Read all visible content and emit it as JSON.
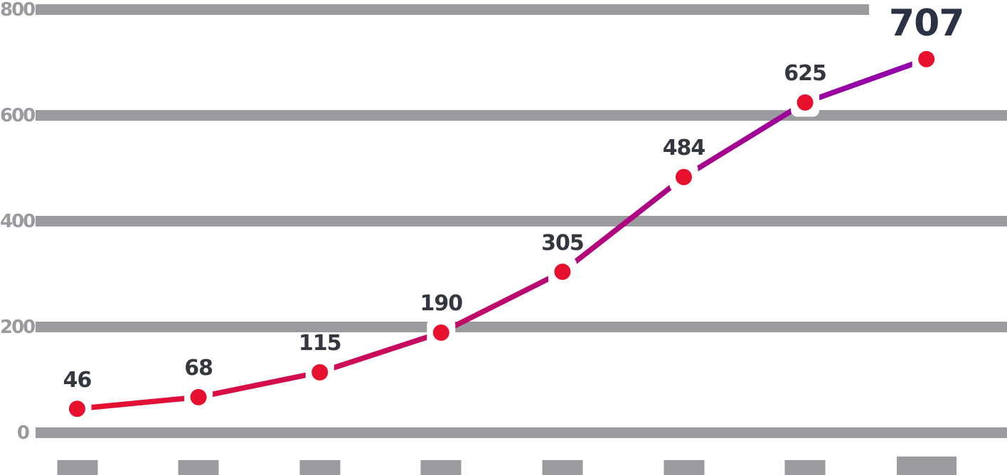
{
  "chart_data": {
    "type": "line",
    "title": "",
    "x_labels": [
      "",
      "",
      "",
      "",
      "",
      "",
      "",
      ""
    ],
    "x_labels_cut_off": true,
    "values": [
      46,
      68,
      115,
      190,
      305,
      484,
      625,
      707
    ],
    "point_labels": [
      "46",
      "68",
      "115",
      "190",
      "305",
      "484",
      "625",
      "707"
    ],
    "highlight_label": "707",
    "y_ticks": [
      "800",
      "600",
      "400",
      "200",
      "0"
    ],
    "ylim": [
      0,
      800
    ],
    "grid": true,
    "legend": false,
    "colors": {
      "line_start": "#e8112d",
      "line_end": "#8f00ae",
      "point": "#e8112d",
      "point_halo": "#ffffff",
      "grid": "#9a9a9f",
      "tick_text": "#9a9a9f",
      "label_text": "#34373f",
      "highlight_text": "#2b3243"
    }
  }
}
